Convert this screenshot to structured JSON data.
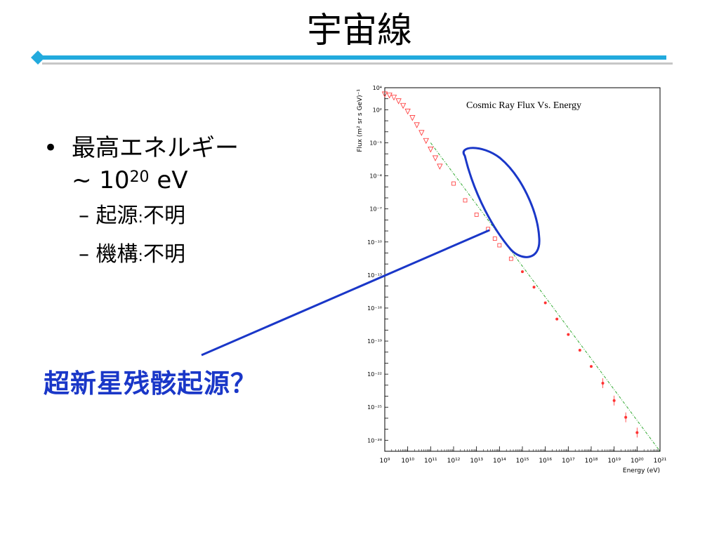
{
  "slide": {
    "title": "宇宙線",
    "bullet1_main": "最高エネルギー",
    "bullet1_approx": "~ 10",
    "bullet1_exp": "20",
    "bullet1_unit": " eV",
    "sub1_label": "起源",
    "sub1_value": "不明",
    "sub2_label": "機構",
    "sub2_value": "不明",
    "sub_dash": "–",
    "colon": ":",
    "bullet_dot": "•",
    "callout": "超新星残骸起源？",
    "accent_color": "#1a37c8",
    "rule_color": "#22aadd"
  },
  "chart_data": {
    "type": "scatter",
    "title": "Cosmic Ray Flux Vs. Energy",
    "xlabel": "Energy (eV)",
    "ylabel": "Flux (m² sr s GeV)⁻¹",
    "xscale": "log",
    "yscale": "log",
    "xlim": [
      1000000000.0,
      1e+21
    ],
    "ylim": [
      1e-29,
      10000.0
    ],
    "x_tick_labels": [
      "10⁹",
      "10¹⁰",
      "10¹¹",
      "10¹²",
      "10¹³",
      "10¹⁴",
      "10¹⁵",
      "10¹⁶",
      "10¹⁷",
      "10¹⁸",
      "10¹⁹",
      "10²⁰",
      "10²¹"
    ],
    "y_tick_labels": [
      "10⁴",
      "10²",
      "10⁻¹",
      "10⁻⁴",
      "10⁻⁷",
      "10⁻¹⁰",
      "10⁻¹³",
      "10⁻¹⁶",
      "10⁻¹⁹",
      "10⁻²²",
      "10⁻²⁵",
      "10⁻²⁸"
    ],
    "series": [
      {
        "color": "#ff3333",
        "points": [
          [
            1000000000.0,
            2500.0
          ],
          [
            1600000000.0,
            2000.0
          ],
          [
            2500000000.0,
            1300.0
          ],
          [
            4000000000.0,
            600.0
          ],
          [
            6300000000.0,
            230.0
          ],
          [
            10000000000.0,
            70.0
          ],
          [
            16000000000.0,
            18.0
          ],
          [
            25000000000.0,
            4.0
          ],
          [
            40000000000.0,
            0.8
          ],
          [
            63000000000.0,
            0.15
          ],
          [
            100000000000.0,
            0.025
          ],
          [
            160000000000.0,
            0.004
          ],
          [
            250000000000.0,
            0.0007
          ],
          [
            1000000000000.0,
            2e-05
          ],
          [
            3200000000000.0,
            6e-07
          ],
          [
            10000000000000.0,
            3e-08
          ],
          [
            32000000000000.0,
            1.5e-09
          ],
          [
            63000000000000.0,
            2e-10
          ],
          [
            100000000000000.0,
            5e-11
          ],
          [
            320000000000000.0,
            3e-12
          ],
          [
            1000000000000000.0,
            2e-13
          ],
          [
            3200000000000000.0,
            8e-15
          ],
          [
            1e+16,
            3e-16
          ],
          [
            3.2e+16,
            1e-17
          ],
          [
            1e+17,
            4e-19
          ],
          [
            3.2e+17,
            1.5e-20
          ],
          [
            1e+18,
            5e-22
          ],
          [
            3.2e+18,
            1.5e-23
          ],
          [
            1e+19,
            4e-25
          ],
          [
            3.2e+19,
            1.2e-26
          ],
          [
            1e+20,
            5e-28
          ]
        ]
      }
    ],
    "fit_line": {
      "style": "dash-dot",
      "color": "#33aa33",
      "points": [
        [
          100000000000.0,
          0.1
        ],
        [
          1e+21,
          1e-29
        ]
      ]
    },
    "grid": false,
    "annotation": "hand-drawn blue ellipse around 10¹²–10¹⁵ eV points, with line to the callout text"
  }
}
